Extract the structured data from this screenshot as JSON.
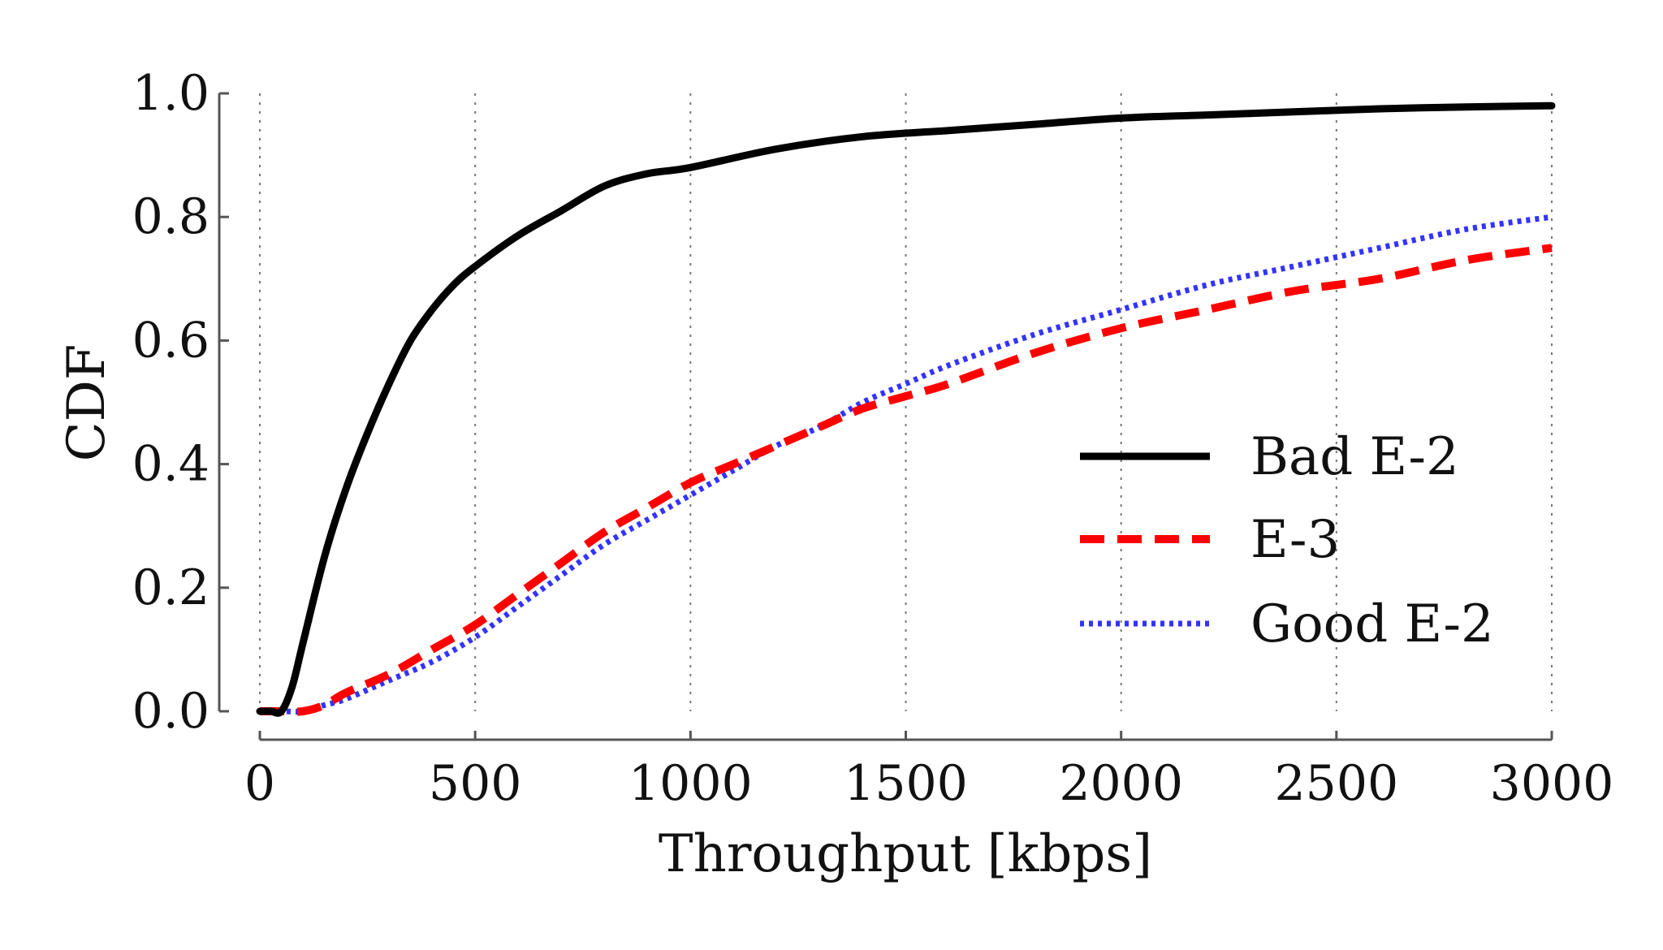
{
  "chart_data": {
    "type": "line",
    "title": "",
    "xlabel": "Throughput [kbps]",
    "ylabel": "CDF",
    "xlim": [
      0,
      3000
    ],
    "ylim": [
      0,
      1.0
    ],
    "x_ticks": [
      "0",
      "500",
      "1000",
      "1500",
      "2000",
      "2500",
      "3000"
    ],
    "y_ticks": [
      "0.0",
      "0.2",
      "0.4",
      "0.6",
      "0.8",
      "1.0"
    ],
    "grid": "vertical dotted",
    "legend_position": "center-right",
    "series": [
      {
        "name": "Bad E-2",
        "color": "#000000",
        "style": "solid",
        "x": [
          0,
          25,
          50,
          75,
          100,
          150,
          200,
          250,
          300,
          350,
          400,
          450,
          500,
          600,
          700,
          800,
          900,
          1000,
          1200,
          1400,
          1600,
          1800,
          2000,
          2200,
          2400,
          2600,
          2800,
          3000
        ],
        "y": [
          0.0,
          0.0,
          0.0,
          0.04,
          0.11,
          0.25,
          0.36,
          0.45,
          0.53,
          0.6,
          0.65,
          0.69,
          0.72,
          0.77,
          0.81,
          0.85,
          0.87,
          0.88,
          0.91,
          0.93,
          0.94,
          0.95,
          0.96,
          0.965,
          0.97,
          0.975,
          0.978,
          0.98
        ]
      },
      {
        "name": "E-3",
        "color": "#ff0000",
        "style": "dashed",
        "x": [
          0,
          50,
          100,
          150,
          200,
          300,
          400,
          500,
          600,
          700,
          800,
          900,
          1000,
          1100,
          1200,
          1300,
          1400,
          1500,
          1600,
          1800,
          2000,
          2200,
          2400,
          2600,
          2800,
          3000
        ],
        "y": [
          0.0,
          0.0,
          0.0,
          0.01,
          0.03,
          0.06,
          0.1,
          0.14,
          0.19,
          0.24,
          0.29,
          0.33,
          0.37,
          0.4,
          0.43,
          0.46,
          0.49,
          0.51,
          0.53,
          0.58,
          0.62,
          0.65,
          0.68,
          0.7,
          0.73,
          0.75
        ]
      },
      {
        "name": "Good E-2",
        "color": "#3333ff",
        "style": "dotted",
        "x": [
          0,
          50,
          100,
          150,
          200,
          300,
          400,
          500,
          600,
          700,
          800,
          900,
          1000,
          1100,
          1200,
          1300,
          1400,
          1500,
          1600,
          1800,
          2000,
          2200,
          2400,
          2600,
          2800,
          3000
        ],
        "y": [
          0.0,
          0.0,
          0.0,
          0.01,
          0.02,
          0.05,
          0.08,
          0.12,
          0.17,
          0.22,
          0.27,
          0.31,
          0.35,
          0.39,
          0.43,
          0.46,
          0.5,
          0.53,
          0.56,
          0.61,
          0.65,
          0.69,
          0.72,
          0.75,
          0.78,
          0.8
        ]
      }
    ]
  }
}
